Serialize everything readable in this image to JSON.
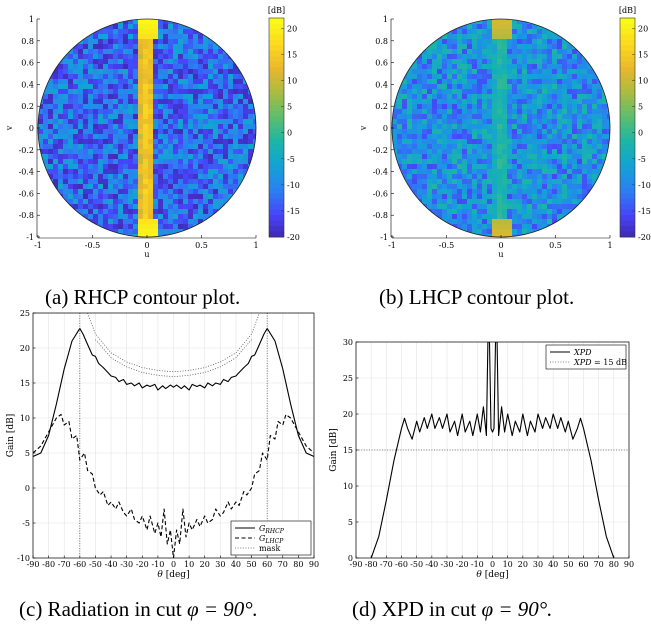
{
  "figure": {
    "panels": [
      {
        "id": "a",
        "caption": "(a) RHCP contour plot."
      },
      {
        "id": "b",
        "caption": "(b) LHCP contour plot."
      },
      {
        "id": "c",
        "caption_prefix": "(c) Radiation in cut ",
        "caption_math": "φ = 90°."
      },
      {
        "id": "d",
        "caption_prefix": "(d) XPD in cut ",
        "caption_math": "φ = 90°."
      }
    ]
  },
  "chart_data": [
    {
      "type": "heatmap",
      "panel": "a",
      "title": "",
      "xlabel": "u",
      "ylabel": "v",
      "xlim": [
        -1,
        1
      ],
      "ylim": [
        -1,
        1
      ],
      "xticks": [
        "-1",
        "-0.5",
        "0",
        "0.5",
        "1"
      ],
      "yticks": [
        "1",
        "0.8",
        "0.6",
        "0.4",
        "0.2",
        "0",
        "-0.2",
        "-0.4",
        "-0.6",
        "-0.8",
        "-1"
      ],
      "colorbar": {
        "unit": "[dB]",
        "range": [
          -20,
          22
        ],
        "ticks": [
          "20",
          "15",
          "10",
          "5",
          "0",
          "-5",
          "-10",
          "-15",
          "-20"
        ]
      },
      "features": {
        "stripe_at_u": 0,
        "stripe_level_db": 16,
        "peak_level_db": 22,
        "background_level_db": -12
      },
      "colormap": [
        "#3e26a8",
        "#4743f8",
        "#2c7ff2",
        "#14a1d6",
        "#1ab5a9",
        "#5abd70",
        "#a6bc43",
        "#e7b72d",
        "#fbd81f",
        "#f9fb15"
      ]
    },
    {
      "type": "heatmap",
      "panel": "b",
      "title": "",
      "xlabel": "u",
      "ylabel": "v",
      "xlim": [
        -1,
        1
      ],
      "ylim": [
        -1,
        1
      ],
      "xticks": [
        "-1",
        "-0.5",
        "0",
        "0.5",
        "1"
      ],
      "yticks": [
        "1",
        "0.8",
        "0.6",
        "0.4",
        "0.2",
        "0",
        "-0.2",
        "-0.4",
        "-0.6",
        "-0.8",
        "-1"
      ],
      "colorbar": {
        "unit": "[dB]",
        "range": [
          -20,
          22
        ],
        "ticks": [
          "20",
          "15",
          "10",
          "5",
          "0",
          "-5",
          "-10",
          "-15",
          "-20"
        ]
      },
      "features": {
        "stripe_at_u": 0,
        "stripe_level_db": 0,
        "peak_level_db": 12,
        "background_level_db": -8
      },
      "colormap": [
        "#3e26a8",
        "#4743f8",
        "#2c7ff2",
        "#14a1d6",
        "#1ab5a9",
        "#5abd70",
        "#a6bc43",
        "#e7b72d",
        "#fbd81f",
        "#f9fb15"
      ]
    },
    {
      "type": "line",
      "panel": "c",
      "title": "",
      "xlabel": "θ [deg]",
      "ylabel": "Gain [dB]",
      "xlim": [
        -90,
        90
      ],
      "ylim": [
        -10,
        25
      ],
      "xticks": [
        -90,
        -80,
        -70,
        -60,
        -50,
        -40,
        -30,
        -20,
        -10,
        0,
        10,
        20,
        30,
        40,
        50,
        60,
        70,
        80,
        90
      ],
      "yticks": [
        -10,
        -5,
        0,
        5,
        10,
        15,
        20,
        25
      ],
      "grid": true,
      "legend": {
        "placement": "bottom-right",
        "entries": [
          "G_RHCP",
          "G_LHCP",
          "mask"
        ]
      },
      "series": [
        {
          "name": "G_RHCP",
          "style": "solid",
          "x": [
            -90,
            -85,
            -80,
            -75,
            -70,
            -65,
            -60,
            -58,
            -55,
            -52,
            -50,
            -48,
            -45,
            -42,
            -40,
            -37,
            -35,
            -32,
            -30,
            -27,
            -25,
            -22,
            -20,
            -17,
            -15,
            -12,
            -10,
            -7,
            -5,
            -2,
            0,
            2,
            5,
            7,
            10,
            12,
            15,
            17,
            20,
            22,
            25,
            27,
            30,
            32,
            35,
            37,
            40,
            42,
            45,
            48,
            50,
            52,
            55,
            58,
            60,
            65,
            70,
            75,
            80,
            85,
            90
          ],
          "y": [
            4.5,
            5.0,
            7.5,
            12.0,
            17.0,
            21.0,
            22.8,
            22.0,
            20.5,
            19.0,
            18.8,
            17.8,
            17.2,
            16.5,
            16.0,
            15.8,
            15.2,
            15.5,
            14.8,
            15.0,
            14.6,
            15.0,
            14.3,
            14.7,
            14.5,
            14.8,
            14.0,
            14.6,
            14.2,
            14.7,
            14.4,
            14.7,
            14.2,
            14.6,
            14.0,
            14.8,
            14.5,
            14.7,
            14.3,
            15.0,
            14.6,
            15.0,
            14.8,
            15.5,
            15.2,
            15.8,
            16.0,
            16.5,
            17.2,
            17.8,
            18.8,
            19.0,
            20.5,
            22.0,
            22.8,
            21.0,
            17.0,
            12.0,
            7.5,
            5.0,
            4.5
          ]
        },
        {
          "name": "G_LHCP",
          "style": "dashed",
          "x": [
            -90,
            -85,
            -80,
            -75,
            -72,
            -70,
            -67,
            -65,
            -62,
            -60,
            -57,
            -55,
            -52,
            -50,
            -47,
            -45,
            -42,
            -40,
            -37,
            -35,
            -32,
            -30,
            -27,
            -25,
            -22,
            -20,
            -17,
            -15,
            -12,
            -10,
            -8,
            -6,
            -4,
            -2,
            0,
            2,
            4,
            6,
            8,
            10,
            12,
            15,
            17,
            20,
            22,
            25,
            27,
            30,
            32,
            35,
            37,
            40,
            42,
            45,
            47,
            50,
            52,
            55,
            57,
            60,
            62,
            65,
            67,
            70,
            72,
            75,
            80,
            85,
            90
          ],
          "y": [
            5.0,
            6.0,
            8.0,
            10.0,
            10.5,
            9.0,
            9.5,
            7.0,
            7.5,
            4.0,
            5.0,
            2.5,
            2.0,
            0.0,
            -1.0,
            -0.5,
            -2.5,
            -2.0,
            -3.0,
            -2.0,
            -3.5,
            -4.0,
            -3.0,
            -4.5,
            -5.0,
            -4.0,
            -6.0,
            -4.0,
            -6.5,
            -5.0,
            -7.0,
            -3.0,
            -8.0,
            -6.0,
            -10.0,
            -6.0,
            -8.0,
            -3.0,
            -7.0,
            -5.0,
            -6.0,
            -4.5,
            -5.5,
            -4.0,
            -5.0,
            -4.5,
            -3.0,
            -4.0,
            -3.5,
            -2.0,
            -3.0,
            -2.0,
            -2.5,
            -0.5,
            -1.0,
            0.0,
            2.0,
            2.5,
            5.0,
            4.0,
            7.5,
            7.0,
            9.5,
            9.0,
            10.5,
            10.0,
            8.0,
            6.0,
            5.0
          ]
        },
        {
          "name": "mask",
          "style": "dotted",
          "x": [
            -90,
            -60,
            -60,
            -55,
            -50,
            -40,
            -30,
            -20,
            -10,
            0,
            10,
            20,
            30,
            40,
            50,
            55,
            60,
            60,
            90
          ],
          "y": [
            25,
            25,
            25,
            25,
            22.0,
            19.3,
            18.0,
            17.2,
            16.8,
            16.6,
            16.8,
            17.2,
            18.0,
            19.3,
            22.0,
            25,
            25,
            25,
            25
          ]
        },
        {
          "name": "",
          "style": "dotted",
          "x": [
            -50,
            -40,
            -30,
            -20,
            -10,
            0,
            10,
            20,
            30,
            40,
            50
          ],
          "y": [
            21.2,
            18.6,
            17.3,
            16.5,
            16.1,
            15.9,
            16.1,
            16.5,
            17.3,
            18.6,
            21.2
          ]
        }
      ],
      "vertical_markers_x": [
        -60,
        60
      ]
    },
    {
      "type": "line",
      "panel": "d",
      "title": "",
      "xlabel": "θ [deg]",
      "ylabel": "Gain [dB]",
      "xlim": [
        -90,
        90
      ],
      "ylim": [
        0,
        30
      ],
      "xticks": [
        -90,
        -80,
        -70,
        -60,
        -50,
        -40,
        -30,
        -20,
        -10,
        0,
        10,
        20,
        30,
        40,
        50,
        60,
        70,
        80,
        90
      ],
      "yticks": [
        0,
        5,
        10,
        15,
        20,
        25,
        30
      ],
      "grid": true,
      "legend": {
        "placement": "top-right",
        "entries": [
          "XPD",
          "XPD = 15 dB"
        ]
      },
      "series": [
        {
          "name": "XPD",
          "style": "solid",
          "x": [
            -80,
            -75,
            -70,
            -65,
            -60,
            -58,
            -56,
            -53,
            -50,
            -48,
            -45,
            -43,
            -40,
            -38,
            -35,
            -33,
            -30,
            -28,
            -25,
            -23,
            -20,
            -18,
            -15,
            -13,
            -10,
            -8,
            -6,
            -4,
            -3,
            -2,
            -1,
            0,
            1,
            2,
            3,
            4,
            6,
            8,
            10,
            13,
            15,
            18,
            20,
            23,
            25,
            28,
            30,
            33,
            35,
            38,
            40,
            43,
            45,
            48,
            50,
            53,
            56,
            58,
            60,
            65,
            70,
            75,
            80
          ],
          "y": [
            0,
            3.0,
            8.0,
            13.5,
            18.0,
            19.4,
            18.0,
            16.5,
            19.0,
            17.5,
            19.5,
            18.0,
            20.0,
            18.0,
            19.5,
            18.0,
            20.0,
            17.5,
            19.0,
            17.0,
            20.0,
            17.5,
            19.0,
            17.0,
            20.0,
            17.5,
            21.0,
            17.0,
            30,
            30,
            18,
            17.5,
            18,
            30,
            30,
            17.0,
            21.0,
            17.5,
            20.0,
            17.0,
            19.0,
            17.5,
            20.0,
            17.0,
            19.0,
            17.5,
            20.0,
            18.0,
            19.5,
            18.0,
            20.0,
            18.0,
            19.5,
            17.5,
            19.0,
            16.5,
            18.0,
            19.4,
            18.0,
            13.5,
            8.0,
            3.0,
            0
          ]
        },
        {
          "name": "XPD = 15 dB",
          "style": "dotted",
          "x": [
            -90,
            90
          ],
          "y": [
            15,
            15
          ]
        }
      ]
    }
  ]
}
